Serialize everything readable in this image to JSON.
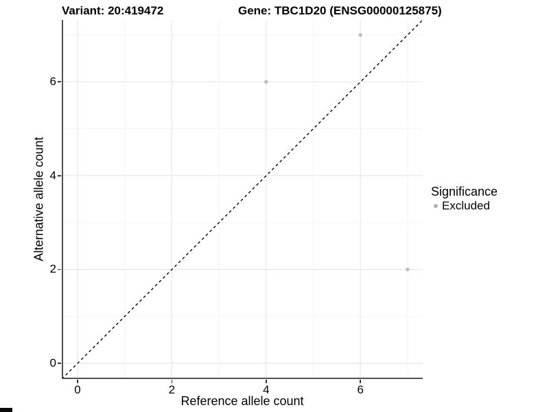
{
  "titles": {
    "variant": "Variant: 20:419472",
    "gene": "Gene: TBC1D20 (ENSG00000125875)"
  },
  "chart_data": {
    "type": "scatter",
    "title_left": "Variant: 20:419472",
    "title_right": "Gene: TBC1D20 (ENSG00000125875)",
    "xlabel": "Reference allele count",
    "ylabel": "Alternative allele count",
    "xlim": [
      -0.35,
      7.33
    ],
    "ylim": [
      -0.34,
      7.32
    ],
    "x_major_ticks": [
      0,
      2,
      4,
      6
    ],
    "y_major_ticks": [
      0,
      2,
      4,
      6
    ],
    "x_minor_gridlines": [
      1,
      3,
      5,
      7
    ],
    "y_minor_gridlines": [
      1,
      3,
      5,
      7
    ],
    "x_tick_labels": [
      "0",
      "2",
      "4",
      "6"
    ],
    "y_tick_labels": [
      "0",
      "2",
      "4",
      "6"
    ],
    "grid": true,
    "identity_line": {
      "type": "y=x",
      "style": "dashed",
      "color": "#000000"
    },
    "series": [
      {
        "name": "Excluded",
        "color": "#bdbdbd",
        "points": [
          {
            "x": 4,
            "y": 6
          },
          {
            "x": 6,
            "y": 7
          },
          {
            "x": 7,
            "y": 2
          }
        ]
      }
    ],
    "legend": {
      "title": "Significance",
      "position": "right",
      "entries": [
        {
          "label": "Excluded",
          "color": "#b3b3b3"
        }
      ]
    },
    "colors": {
      "background": "#ffffff",
      "axis_line": "#4f4f4f",
      "tick_mark": "#333333",
      "grid_major": "#e7e7e7",
      "grid_minor": "#f3f3f3",
      "point": "#bdbdbd",
      "text": "#000000"
    }
  }
}
